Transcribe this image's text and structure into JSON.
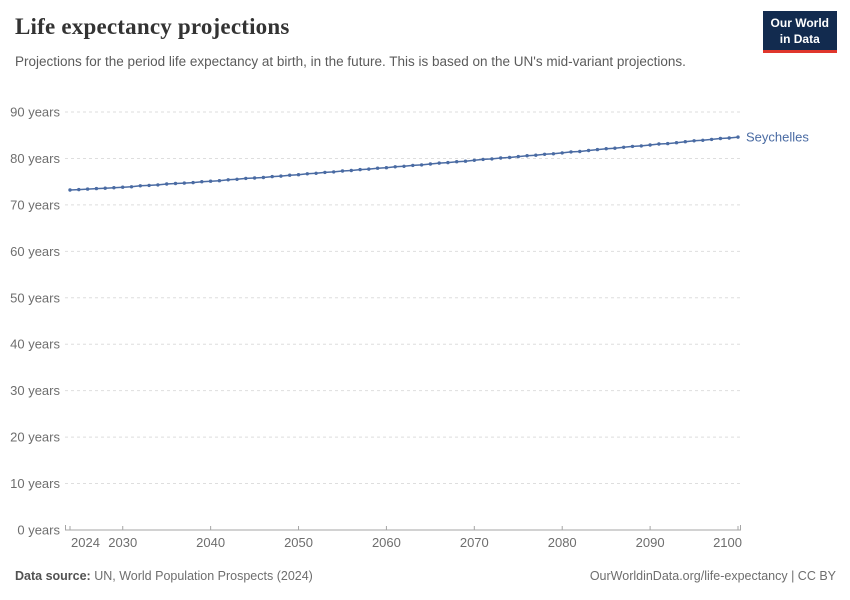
{
  "header": {
    "title": "Life expectancy projections",
    "subtitle": "Projections for the period life expectancy at birth, in the future. This is based on the UN's mid-variant projections.",
    "logo": {
      "line1": "Our World",
      "line2": "in Data",
      "bg_color": "#122b4f",
      "accent_color": "#e0362c"
    }
  },
  "chart_data": {
    "type": "line",
    "title": "Life expectancy projections",
    "xlabel": "",
    "ylabel": "",
    "y_tick_suffix": " years",
    "ylim": [
      0,
      90
    ],
    "yticks": [
      0,
      10,
      20,
      30,
      40,
      50,
      60,
      70,
      80,
      90
    ],
    "xticks": [
      2024,
      2030,
      2040,
      2050,
      2060,
      2070,
      2080,
      2090,
      2100
    ],
    "grid": "horizontal-dashed",
    "legend_position": "line-end-label",
    "x": [
      2024,
      2025,
      2026,
      2027,
      2028,
      2029,
      2030,
      2031,
      2032,
      2033,
      2034,
      2035,
      2036,
      2037,
      2038,
      2039,
      2040,
      2041,
      2042,
      2043,
      2044,
      2045,
      2046,
      2047,
      2048,
      2049,
      2050,
      2051,
      2052,
      2053,
      2054,
      2055,
      2056,
      2057,
      2058,
      2059,
      2060,
      2061,
      2062,
      2063,
      2064,
      2065,
      2066,
      2067,
      2068,
      2069,
      2070,
      2071,
      2072,
      2073,
      2074,
      2075,
      2076,
      2077,
      2078,
      2079,
      2080,
      2081,
      2082,
      2083,
      2084,
      2085,
      2086,
      2087,
      2088,
      2089,
      2090,
      2091,
      2092,
      2093,
      2094,
      2095,
      2096,
      2097,
      2098,
      2099,
      2100
    ],
    "series": [
      {
        "name": "Seychelles",
        "color": "#4a6ba3",
        "values": [
          73.2,
          73.3,
          73.4,
          73.5,
          73.6,
          73.7,
          73.8,
          73.9,
          74.1,
          74.2,
          74.3,
          74.5,
          74.6,
          74.7,
          74.8,
          75.0,
          75.1,
          75.2,
          75.4,
          75.5,
          75.7,
          75.8,
          75.9,
          76.1,
          76.2,
          76.4,
          76.5,
          76.7,
          76.8,
          77.0,
          77.1,
          77.3,
          77.4,
          77.6,
          77.7,
          77.9,
          78.0,
          78.2,
          78.3,
          78.5,
          78.6,
          78.8,
          79.0,
          79.1,
          79.3,
          79.4,
          79.6,
          79.8,
          79.9,
          80.1,
          80.2,
          80.4,
          80.6,
          80.7,
          80.9,
          81.0,
          81.2,
          81.4,
          81.5,
          81.7,
          81.9,
          82.1,
          82.2,
          82.4,
          82.6,
          82.7,
          82.9,
          83.1,
          83.2,
          83.4,
          83.6,
          83.8,
          83.9,
          84.1,
          84.3,
          84.4,
          84.6
        ]
      }
    ]
  },
  "footer": {
    "source_label": "Data source:",
    "source_text": "UN, World Population Prospects (2024)",
    "credit_text": "OurWorldinData.org/life-expectancy | CC BY"
  }
}
